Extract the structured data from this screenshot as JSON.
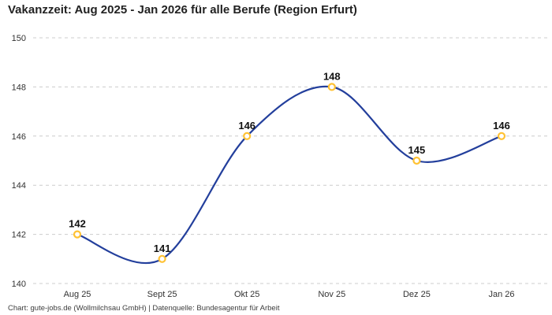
{
  "title": "Vakanzzeit: Aug 2025 - Jan 2026 für alle Berufe (Region Erfurt)",
  "footer": "Chart: gute-jobs.de (Wollmilchsau GmbH) | Datenquelle: Bundesagentur für Arbeit",
  "colors": {
    "line": "#233f9c",
    "marker_stroke": "#ffc234",
    "marker_fill": "#ffffff",
    "grid": "#cccccc",
    "title_text": "#222222",
    "axis_text": "#333333",
    "point_label_text": "#111111"
  },
  "chart_data": {
    "type": "line",
    "title": "Vakanzzeit: Aug 2025 - Jan 2026 für alle Berufe (Region Erfurt)",
    "categories": [
      "Aug 25",
      "Sept 25",
      "Okt 25",
      "Nov 25",
      "Dez 25",
      "Jan 26"
    ],
    "values": [
      142,
      141,
      146,
      148,
      145,
      146
    ],
    "xlabel": "",
    "ylabel": "",
    "ylim": [
      140,
      150
    ],
    "yticks": [
      140,
      142,
      144,
      146,
      148,
      150
    ],
    "grid": true,
    "grid_style": "dashed",
    "legend": "none",
    "line_style": "smooth",
    "point_labels": true
  }
}
